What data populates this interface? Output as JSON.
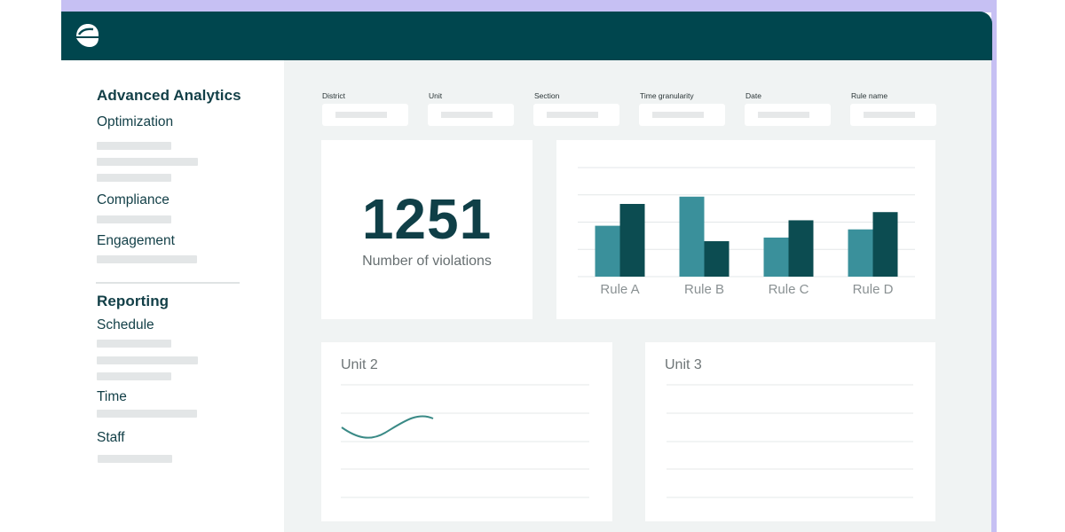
{
  "colors": {
    "topbar": "#00464e",
    "accent_light": "#3a909b",
    "accent_dark": "#0c4c51",
    "text_dark": "#123f47"
  },
  "logo": {
    "icon": "leaf-logo-icon"
  },
  "sidebar": {
    "sections": [
      {
        "title": "Advanced Analytics",
        "items": [
          "Optimization",
          "Compliance",
          "Engagement"
        ]
      },
      {
        "title": "Reporting",
        "items": [
          "Schedule",
          "Time",
          "Staff"
        ]
      }
    ]
  },
  "filters": [
    {
      "label": "District"
    },
    {
      "label": "Unit"
    },
    {
      "label": "Section"
    },
    {
      "label": "Time granularity"
    },
    {
      "label": "Date"
    },
    {
      "label": "Rule name"
    }
  ],
  "kpi": {
    "value": "1251",
    "label": "Number of violations"
  },
  "chart_data": {
    "type": "bar",
    "categories": [
      "Rule A",
      "Rule B",
      "Rule C",
      "Rule D"
    ],
    "series": [
      {
        "values": [
          56,
          88,
          43,
          52
        ],
        "color": "#3a909b"
      },
      {
        "values": [
          80,
          39,
          62,
          71
        ],
        "color": "#0c4c51"
      }
    ],
    "ylim": [
      0,
      120
    ],
    "grid": true
  },
  "cards": {
    "unit2": {
      "title": "Unit 2"
    },
    "unit3": {
      "title": "Unit 3"
    }
  }
}
